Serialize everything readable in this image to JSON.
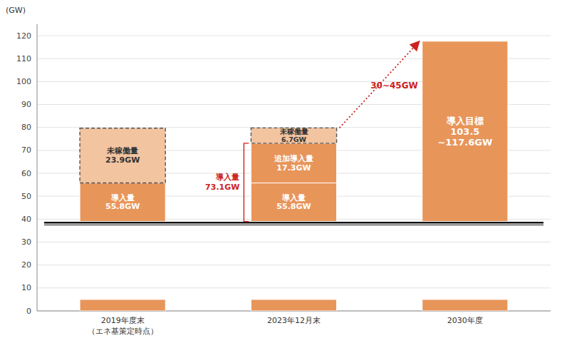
{
  "chart_data": {
    "type": "bar",
    "categories": [
      "2019年度末\n（エネ基策定時点）",
      "2023年12月末",
      "2030年度"
    ],
    "series": [
      {
        "color": "#E8955A",
        "bottoms": [
          0,
          0,
          0
        ],
        "values": [
          5.0,
          5.0,
          5.0
        ]
      },
      {
        "color": "#E8955A",
        "bottoms": [
          39,
          39,
          39
        ],
        "values": [
          55.8,
          55.8,
          117.6
        ],
        "segment_labels": [
          "導入量\n55.8GW",
          "導入量\n55.8GW",
          "導入目標\n103.5\n~117.6GW"
        ]
      },
      {
        "color": "#E8955A",
        "bottoms": [
          null,
          55.8,
          null
        ],
        "values": [
          null,
          73.1,
          null
        ],
        "segment_labels": [
          null,
          "追加導入量\n17.3GW",
          null
        ]
      },
      {
        "color": "#F2C4A0",
        "line_style": "dashed",
        "bottoms": [
          55.8,
          73.1,
          null
        ],
        "values": [
          79.7,
          79.8,
          null
        ],
        "segment_labels": [
          "未稼働量\n23.9GW",
          "未稼働量\n6.7GW",
          null
        ]
      }
    ],
    "break_lines": [
      38.5,
      37.5
    ],
    "arrow": {
      "from_category": "2023年12月末",
      "from_y": 79.8,
      "to_category": "2030年度",
      "to_y": 117.6,
      "label": "30~45GW",
      "label_y": 100,
      "color": "#CC2222"
    },
    "bracket": {
      "category": "2023年12月末",
      "y_bottom": 39,
      "y_top": 73.1,
      "label": "導入量\n73.1GW",
      "color": "#CC2222"
    },
    "y_label": "(GW)",
    "ylim": [
      0,
      125
    ],
    "yticks": [
      0,
      10,
      20,
      30,
      40,
      50,
      60,
      70,
      80,
      90,
      100,
      110,
      120
    ],
    "grid": true
  }
}
